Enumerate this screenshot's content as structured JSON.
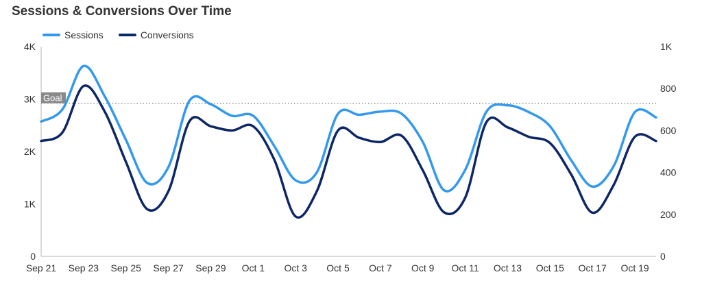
{
  "chart_data": {
    "type": "line",
    "title": "Sessions & Conversions Over Time",
    "x": [
      "Sep 21",
      "Sep 22",
      "Sep 23",
      "Sep 24",
      "Sep 25",
      "Sep 26",
      "Sep 27",
      "Sep 28",
      "Sep 29",
      "Sep 30",
      "Oct 1",
      "Oct 2",
      "Oct 3",
      "Oct 4",
      "Oct 5",
      "Oct 6",
      "Oct 7",
      "Oct 8",
      "Oct 9",
      "Oct 10",
      "Oct 11",
      "Oct 12",
      "Oct 13",
      "Oct 14",
      "Oct 15",
      "Oct 16",
      "Oct 17",
      "Oct 18",
      "Oct 19",
      "Oct 20"
    ],
    "x_tick_labels": [
      "Sep 21",
      "Sep 23",
      "Sep 25",
      "Sep 27",
      "Sep 29",
      "Oct 1",
      "Oct 3",
      "Oct 5",
      "Oct 7",
      "Oct 9",
      "Oct 11",
      "Oct 13",
      "Oct 15",
      "Oct 17",
      "Oct 19"
    ],
    "series": [
      {
        "name": "Sessions",
        "axis": "left",
        "color": "#3399ee",
        "values": [
          2570,
          2800,
          3630,
          3050,
          2220,
          1400,
          1700,
          2970,
          2900,
          2680,
          2680,
          2100,
          1450,
          1600,
          2720,
          2700,
          2760,
          2720,
          2180,
          1260,
          1650,
          2760,
          2880,
          2750,
          2480,
          1830,
          1330,
          1720,
          2750,
          2650
        ]
      },
      {
        "name": "Conversions",
        "axis": "right",
        "color": "#0d2766",
        "values": [
          550,
          590,
          812,
          690,
          450,
          225,
          310,
          645,
          620,
          600,
          620,
          460,
          190,
          310,
          600,
          565,
          545,
          575,
          410,
          210,
          280,
          640,
          615,
          570,
          540,
          390,
          208,
          340,
          570,
          550
        ]
      }
    ],
    "y_left": {
      "ticks": [
        0,
        1000,
        2000,
        3000,
        4000
      ],
      "tick_labels": [
        "0",
        "1K",
        "2K",
        "3K",
        "4K"
      ],
      "ylim": [
        0,
        4000
      ]
    },
    "y_right": {
      "ticks": [
        0,
        200,
        400,
        600,
        800,
        1000
      ],
      "tick_labels": [
        "0",
        "200",
        "400",
        "600",
        "800",
        "1K"
      ],
      "ylim": [
        0,
        1000
      ]
    },
    "goal": {
      "label": "Goal",
      "value": 2920,
      "axis": "left"
    },
    "legend": "top-left",
    "grid": false
  }
}
